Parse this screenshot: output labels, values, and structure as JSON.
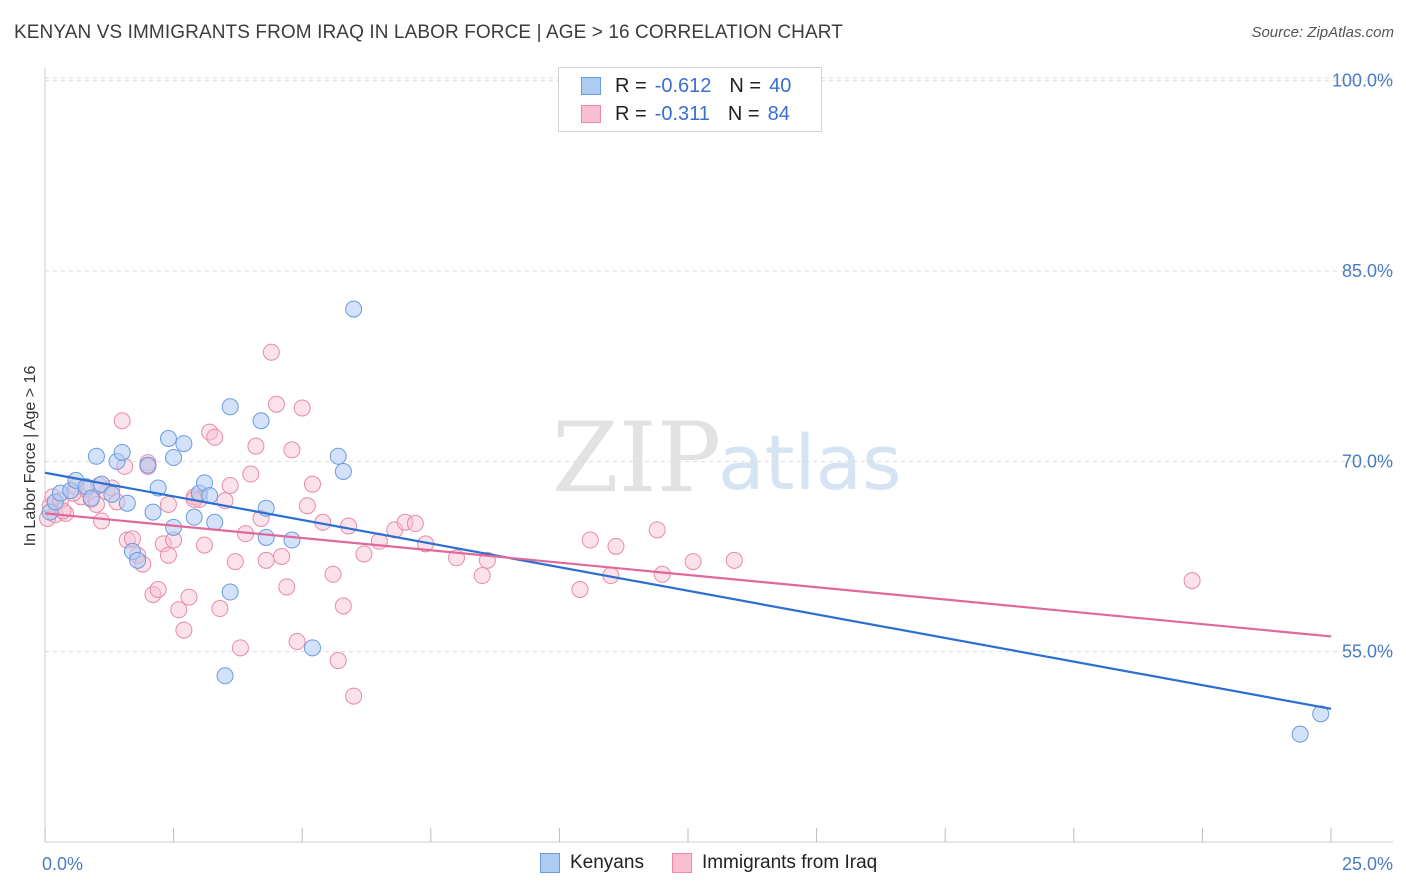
{
  "header": {
    "title": "KENYAN VS IMMIGRANTS FROM IRAQ IN LABOR FORCE | AGE > 16 CORRELATION CHART",
    "source": "Source: ZipAtlas.com"
  },
  "legend_top": {
    "rows": [
      {
        "r_label": "R =",
        "r_value": "-0.612",
        "n_label": "N =",
        "n_value": "40"
      },
      {
        "r_label": "R =",
        "r_value": "-0.311",
        "n_label": "N =",
        "n_value": "84"
      }
    ]
  },
  "legend_bottom": {
    "items": [
      "Kenyans",
      "Immigrants from Iraq"
    ]
  },
  "watermark": {
    "zip": "ZIP",
    "atlas": "atlas"
  },
  "colors": {
    "kenyan_fill": "#aecbf2",
    "kenyan_stroke": "#6a9be0",
    "kenyan_line": "#2a6fd1",
    "iraq_fill": "#f7bfd0",
    "iraq_stroke": "#e98aa8",
    "iraq_line": "#e0689a",
    "tick_text": "#4a7cc4",
    "grid": "#dddddd"
  },
  "chart_data": {
    "type": "scatter",
    "title": "KENYAN VS IMMIGRANTS FROM IRAQ IN LABOR FORCE | AGE > 16 CORRELATION CHART",
    "xlabel": "",
    "ylabel": "In Labor Force | Age > 16",
    "xlim": [
      0,
      25
    ],
    "ylim": [
      40,
      101
    ],
    "x_tick_labels": [
      "0.0%",
      "25.0%"
    ],
    "y_ticks": [
      55,
      70,
      85,
      100
    ],
    "y_tick_labels": [
      "55.0%",
      "70.0%",
      "85.0%",
      "100.0%"
    ],
    "grid": true,
    "legend_position": "top-center",
    "series": [
      {
        "name": "Kenyans",
        "r": -0.612,
        "n": 40,
        "trend": {
          "x": [
            0,
            25
          ],
          "y": [
            69.1,
            50.5
          ]
        },
        "points": [
          [
            0.1,
            66.0
          ],
          [
            0.2,
            66.8
          ],
          [
            0.3,
            67.5
          ],
          [
            0.5,
            67.7
          ],
          [
            0.6,
            68.5
          ],
          [
            0.8,
            68.0
          ],
          [
            0.9,
            67.1
          ],
          [
            1.0,
            70.4
          ],
          [
            1.1,
            68.2
          ],
          [
            1.3,
            67.4
          ],
          [
            1.4,
            70.0
          ],
          [
            1.5,
            70.7
          ],
          [
            1.6,
            66.7
          ],
          [
            1.7,
            62.9
          ],
          [
            1.8,
            62.2
          ],
          [
            2.0,
            69.7
          ],
          [
            2.1,
            66.0
          ],
          [
            2.2,
            67.9
          ],
          [
            2.5,
            64.8
          ],
          [
            2.5,
            70.3
          ],
          [
            2.4,
            71.8
          ],
          [
            2.7,
            71.4
          ],
          [
            2.9,
            65.6
          ],
          [
            3.0,
            67.5
          ],
          [
            3.1,
            68.3
          ],
          [
            3.2,
            67.3
          ],
          [
            3.3,
            65.2
          ],
          [
            3.5,
            53.1
          ],
          [
            3.6,
            74.3
          ],
          [
            3.6,
            59.7
          ],
          [
            4.2,
            73.2
          ],
          [
            4.3,
            66.3
          ],
          [
            4.3,
            64.0
          ],
          [
            4.8,
            63.8
          ],
          [
            5.2,
            55.3
          ],
          [
            5.7,
            70.4
          ],
          [
            5.8,
            69.2
          ],
          [
            6.0,
            82.0
          ],
          [
            24.4,
            48.5
          ],
          [
            24.8,
            50.1
          ]
        ]
      },
      {
        "name": "Immigrants from Iraq",
        "r": -0.311,
        "n": 84,
        "trend": {
          "x": [
            0,
            25
          ],
          "y": [
            65.9,
            56.2
          ]
        },
        "points": [
          [
            0.05,
            65.5
          ],
          [
            0.1,
            66.5
          ],
          [
            0.15,
            67.2
          ],
          [
            0.2,
            65.8
          ],
          [
            0.3,
            66.9
          ],
          [
            0.4,
            65.9
          ],
          [
            0.6,
            68.0
          ],
          [
            0.7,
            67.2
          ],
          [
            0.8,
            67.8
          ],
          [
            0.9,
            67.0
          ],
          [
            1.0,
            66.6
          ],
          [
            1.1,
            65.3
          ],
          [
            1.2,
            67.6
          ],
          [
            1.3,
            67.9
          ],
          [
            1.4,
            66.8
          ],
          [
            1.5,
            73.2
          ],
          [
            1.6,
            63.8
          ],
          [
            1.7,
            63.9
          ],
          [
            1.8,
            62.6
          ],
          [
            1.9,
            61.9
          ],
          [
            2.0,
            69.9
          ],
          [
            2.0,
            69.6
          ],
          [
            2.1,
            59.5
          ],
          [
            2.2,
            59.9
          ],
          [
            2.3,
            63.5
          ],
          [
            2.4,
            62.6
          ],
          [
            2.4,
            66.6
          ],
          [
            2.5,
            63.8
          ],
          [
            2.6,
            58.3
          ],
          [
            2.7,
            56.7
          ],
          [
            2.8,
            59.3
          ],
          [
            2.9,
            67.2
          ],
          [
            3.0,
            67.0
          ],
          [
            3.1,
            63.4
          ],
          [
            3.2,
            72.3
          ],
          [
            3.3,
            71.9
          ],
          [
            3.4,
            58.4
          ],
          [
            3.5,
            66.9
          ],
          [
            3.6,
            68.1
          ],
          [
            3.7,
            62.1
          ],
          [
            3.8,
            55.3
          ],
          [
            3.9,
            64.3
          ],
          [
            4.0,
            69.0
          ],
          [
            4.1,
            71.2
          ],
          [
            4.2,
            65.5
          ],
          [
            4.3,
            62.2
          ],
          [
            4.4,
            78.6
          ],
          [
            4.5,
            74.5
          ],
          [
            4.6,
            62.5
          ],
          [
            4.7,
            60.1
          ],
          [
            4.8,
            70.9
          ],
          [
            4.9,
            55.8
          ],
          [
            5.0,
            74.2
          ],
          [
            5.1,
            66.5
          ],
          [
            5.2,
            68.2
          ],
          [
            5.4,
            65.2
          ],
          [
            5.6,
            61.1
          ],
          [
            5.7,
            54.3
          ],
          [
            5.8,
            58.6
          ],
          [
            5.9,
            64.9
          ],
          [
            6.0,
            51.5
          ],
          [
            6.2,
            62.7
          ],
          [
            6.5,
            63.7
          ],
          [
            6.8,
            64.6
          ],
          [
            7.0,
            65.2
          ],
          [
            7.2,
            65.1
          ],
          [
            7.4,
            63.5
          ],
          [
            8.0,
            62.4
          ],
          [
            8.5,
            61.0
          ],
          [
            8.6,
            62.2
          ],
          [
            10.4,
            59.9
          ],
          [
            10.6,
            63.8
          ],
          [
            11.0,
            61.0
          ],
          [
            11.1,
            63.3
          ],
          [
            11.9,
            64.6
          ],
          [
            12.0,
            61.1
          ],
          [
            12.6,
            62.1
          ],
          [
            13.4,
            62.2
          ],
          [
            22.3,
            60.6
          ],
          [
            0.35,
            66.1
          ],
          [
            0.55,
            67.5
          ],
          [
            1.05,
            68.1
          ],
          [
            1.55,
            69.6
          ],
          [
            2.9,
            67.0
          ]
        ]
      }
    ]
  }
}
